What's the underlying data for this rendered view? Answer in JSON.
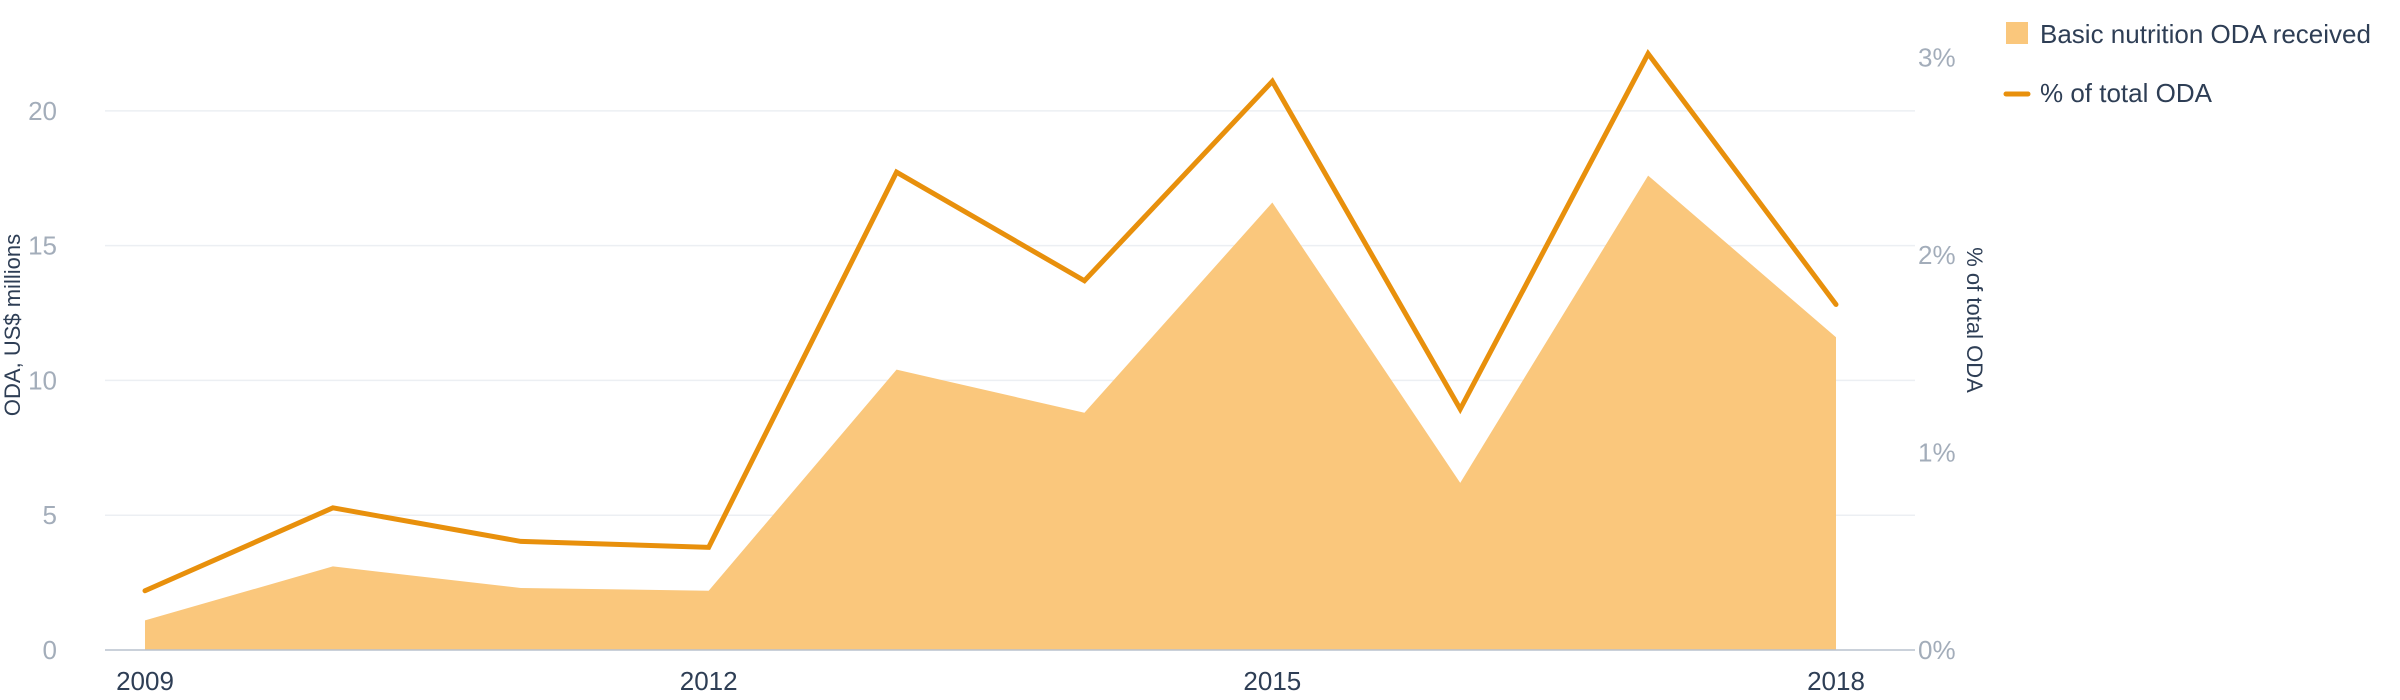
{
  "chart_data": {
    "type": "area",
    "x": [
      2009,
      2010,
      2011,
      2012,
      2013,
      2014,
      2015,
      2016,
      2017,
      2018
    ],
    "x_tick_labels": [
      "2009",
      "2012",
      "2015",
      "2018"
    ],
    "x_tick_values": [
      2009,
      2012,
      2015,
      2018
    ],
    "series": [
      {
        "name": "Basic nutrition ODA received",
        "type": "area",
        "axis": "left",
        "color": "#fac77c",
        "values": [
          1.1,
          3.1,
          2.3,
          2.2,
          10.4,
          8.8,
          16.6,
          6.2,
          17.6,
          11.6
        ]
      },
      {
        "name": "% of total ODA",
        "type": "line",
        "axis": "right",
        "color": "#e8900c",
        "values": [
          0.3,
          0.72,
          0.55,
          0.52,
          2.42,
          1.87,
          2.88,
          1.22,
          3.02,
          1.75
        ]
      }
    ],
    "y_left": {
      "label": "ODA, US$ millions",
      "ylim": [
        0,
        23
      ],
      "ticks": [
        0,
        5,
        10,
        15,
        20
      ],
      "tick_labels": [
        "0",
        "5",
        "10",
        "15",
        "20"
      ]
    },
    "y_right": {
      "label": "% of total ODA",
      "ylim": [
        0,
        3.14
      ],
      "ticks": [
        0,
        1,
        2,
        3
      ],
      "tick_labels": [
        "0%",
        "1%",
        "2%",
        "3%"
      ]
    },
    "grid": true,
    "legend_position": "top-right",
    "legend": [
      {
        "label": "Basic nutrition ODA received",
        "marker": "square",
        "color": "#fac77c"
      },
      {
        "label": "% of total ODA",
        "marker": "line",
        "color": "#e8900c"
      }
    ]
  }
}
